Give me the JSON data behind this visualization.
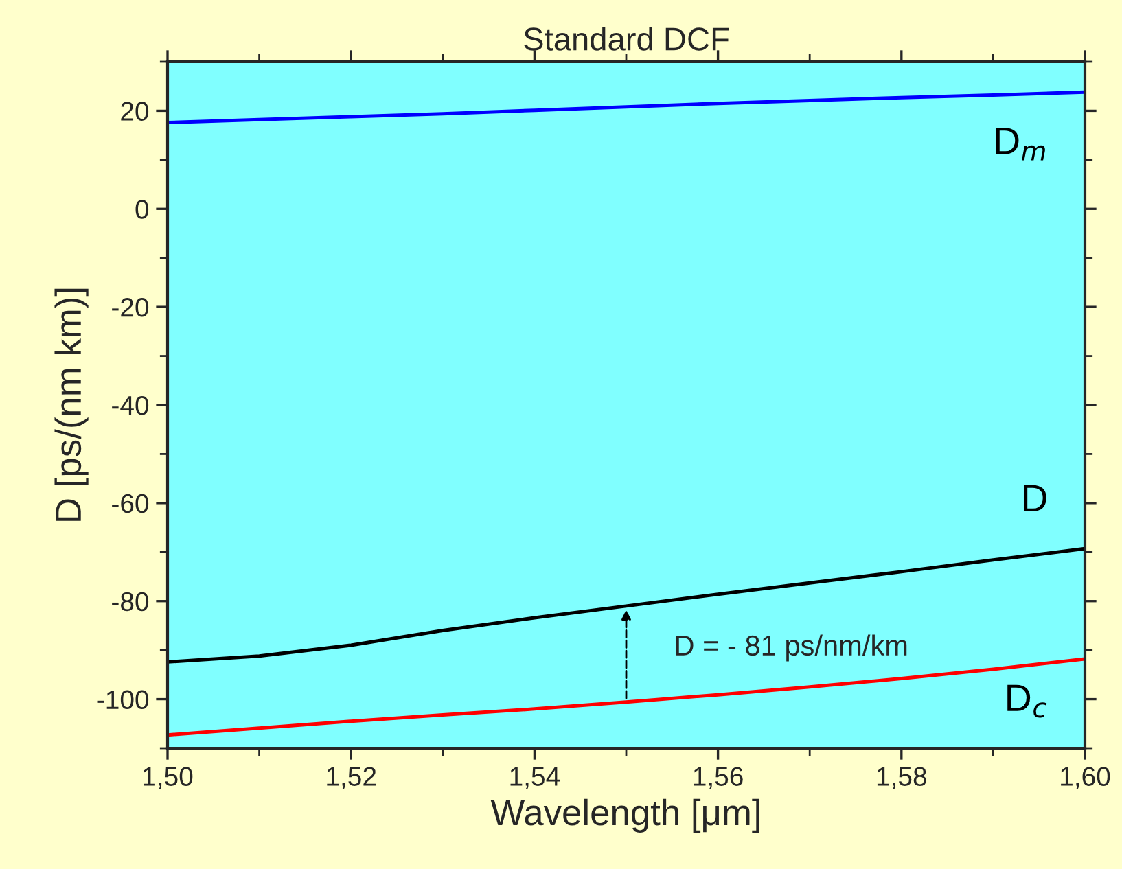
{
  "chart_data": {
    "type": "line",
    "title": "Standard DCF",
    "xlabel": "Wavelength [μm]",
    "ylabel": "D [ps/(nm km)]",
    "xlim": [
      1.5,
      1.6
    ],
    "ylim": [
      -110,
      30
    ],
    "xticks": [
      {
        "value": 1.5,
        "label": "1,50"
      },
      {
        "value": 1.52,
        "label": "1,52"
      },
      {
        "value": 1.54,
        "label": "1,54"
      },
      {
        "value": 1.56,
        "label": "1,56"
      },
      {
        "value": 1.58,
        "label": "1,58"
      },
      {
        "value": 1.6,
        "label": "1,60"
      }
    ],
    "yticks": [
      -100,
      -80,
      -60,
      -40,
      -20,
      0,
      20
    ],
    "x": [
      1.5,
      1.51,
      1.52,
      1.53,
      1.54,
      1.55,
      1.56,
      1.57,
      1.58,
      1.59,
      1.6
    ],
    "series": [
      {
        "name": "D$_{m}$",
        "color": "#0000ff",
        "values": [
          17.6,
          18.2,
          18.8,
          19.4,
          20.1,
          20.8,
          21.5,
          22.1,
          22.7,
          23.2,
          23.8
        ]
      },
      {
        "name": "D",
        "color": "#000000",
        "values": [
          -92.4,
          -91.2,
          -89.0,
          -86.0,
          -83.4,
          -81.0,
          -78.6,
          -76.3,
          -74.0,
          -71.6,
          -69.3
        ]
      },
      {
        "name": "D$_{c}$",
        "color": "#ff0000",
        "values": [
          -107.3,
          -105.9,
          -104.5,
          -103.2,
          -102.0,
          -100.6,
          -99.1,
          -97.5,
          -95.8,
          -93.9,
          -91.8
        ]
      }
    ],
    "annotations": [
      {
        "text": "D = - 81 ps/nm/km",
        "x": 1.55,
        "y": -81
      }
    ],
    "grid": false,
    "legend": false,
    "marker": "none",
    "line_style": "solid"
  }
}
